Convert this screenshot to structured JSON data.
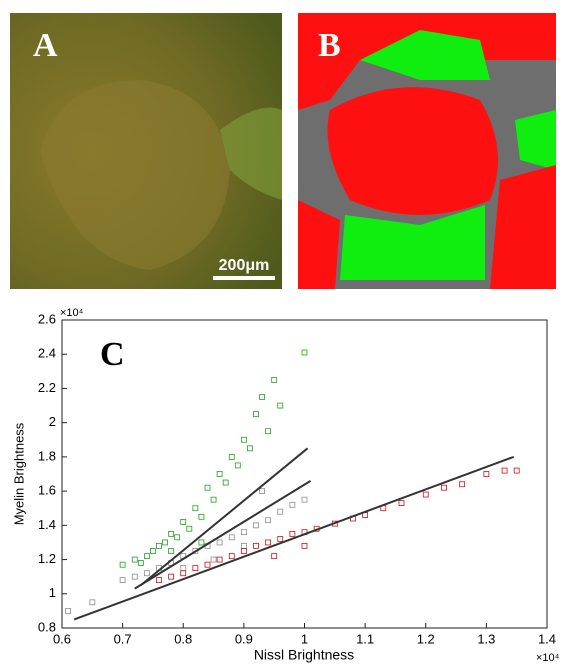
{
  "panels": {
    "a": {
      "label": "A",
      "scale_bar": "200μm"
    },
    "b": {
      "label": "B"
    },
    "c": {
      "label": "C"
    }
  },
  "chart_data": {
    "type": "scatter",
    "x_label": "Nissl Brightness",
    "y_label": "Myelin Brightness",
    "x_exponent": "×10⁴",
    "y_exponent": "×10⁴",
    "xlim": [
      0.6,
      1.4
    ],
    "ylim": [
      0.8,
      2.6
    ],
    "xticks": [
      0.6,
      0.7,
      0.8,
      0.9,
      1,
      1.1,
      1.2,
      1.3,
      1.4
    ],
    "yticks": [
      0.8,
      1,
      1.2,
      1.4,
      1.6,
      1.8,
      2,
      2.2,
      2.4,
      2.6
    ],
    "series": [
      {
        "color": "#8c8c8c",
        "x": [
          0.61,
          0.65,
          0.7,
          0.72,
          0.74,
          0.76,
          0.78,
          0.8,
          0.82,
          0.84,
          0.86,
          0.88,
          0.9,
          0.92,
          0.94,
          0.96,
          0.98,
          1.0,
          0.93,
          0.85,
          0.9,
          0.8
        ],
        "values": [
          0.9,
          0.95,
          1.08,
          1.1,
          1.12,
          1.15,
          1.18,
          1.22,
          1.25,
          1.28,
          1.3,
          1.33,
          1.36,
          1.4,
          1.43,
          1.48,
          1.52,
          1.55,
          1.6,
          1.2,
          1.28,
          1.15
        ]
      },
      {
        "color": "#1ea01e",
        "x": [
          0.7,
          0.72,
          0.74,
          0.75,
          0.76,
          0.77,
          0.78,
          0.79,
          0.8,
          0.81,
          0.82,
          0.83,
          0.84,
          0.85,
          0.86,
          0.87,
          0.88,
          0.89,
          0.9,
          0.91,
          0.92,
          0.93,
          0.94,
          0.95,
          0.96,
          1.0,
          0.73,
          0.78,
          0.83
        ],
        "values": [
          1.17,
          1.2,
          1.22,
          1.25,
          1.28,
          1.3,
          1.35,
          1.33,
          1.42,
          1.38,
          1.5,
          1.45,
          1.62,
          1.55,
          1.7,
          1.65,
          1.8,
          1.75,
          1.9,
          1.85,
          2.05,
          2.15,
          1.95,
          2.25,
          2.1,
          2.41,
          1.18,
          1.25,
          1.3
        ]
      },
      {
        "color": "#d01010",
        "x": [
          0.76,
          0.78,
          0.8,
          0.82,
          0.84,
          0.86,
          0.88,
          0.9,
          0.92,
          0.94,
          0.96,
          0.98,
          1.0,
          1.02,
          1.05,
          1.08,
          1.1,
          1.13,
          1.16,
          1.2,
          1.23,
          1.26,
          1.3,
          1.33,
          1.35,
          0.95,
          1.0
        ],
        "values": [
          1.08,
          1.1,
          1.12,
          1.15,
          1.17,
          1.2,
          1.22,
          1.25,
          1.28,
          1.3,
          1.32,
          1.35,
          1.36,
          1.38,
          1.41,
          1.44,
          1.46,
          1.5,
          1.53,
          1.58,
          1.62,
          1.64,
          1.7,
          1.72,
          1.72,
          1.22,
          1.28
        ]
      }
    ],
    "lines": [
      {
        "color": "#333333",
        "x": [
          0.62,
          1.345
        ],
        "values": [
          0.85,
          1.8
        ]
      },
      {
        "color": "#333333",
        "x": [
          0.73,
          1.005
        ],
        "values": [
          1.05,
          1.85
        ]
      },
      {
        "color": "#333333",
        "x": [
          0.72,
          1.01
        ],
        "values": [
          1.03,
          1.66
        ]
      }
    ]
  }
}
